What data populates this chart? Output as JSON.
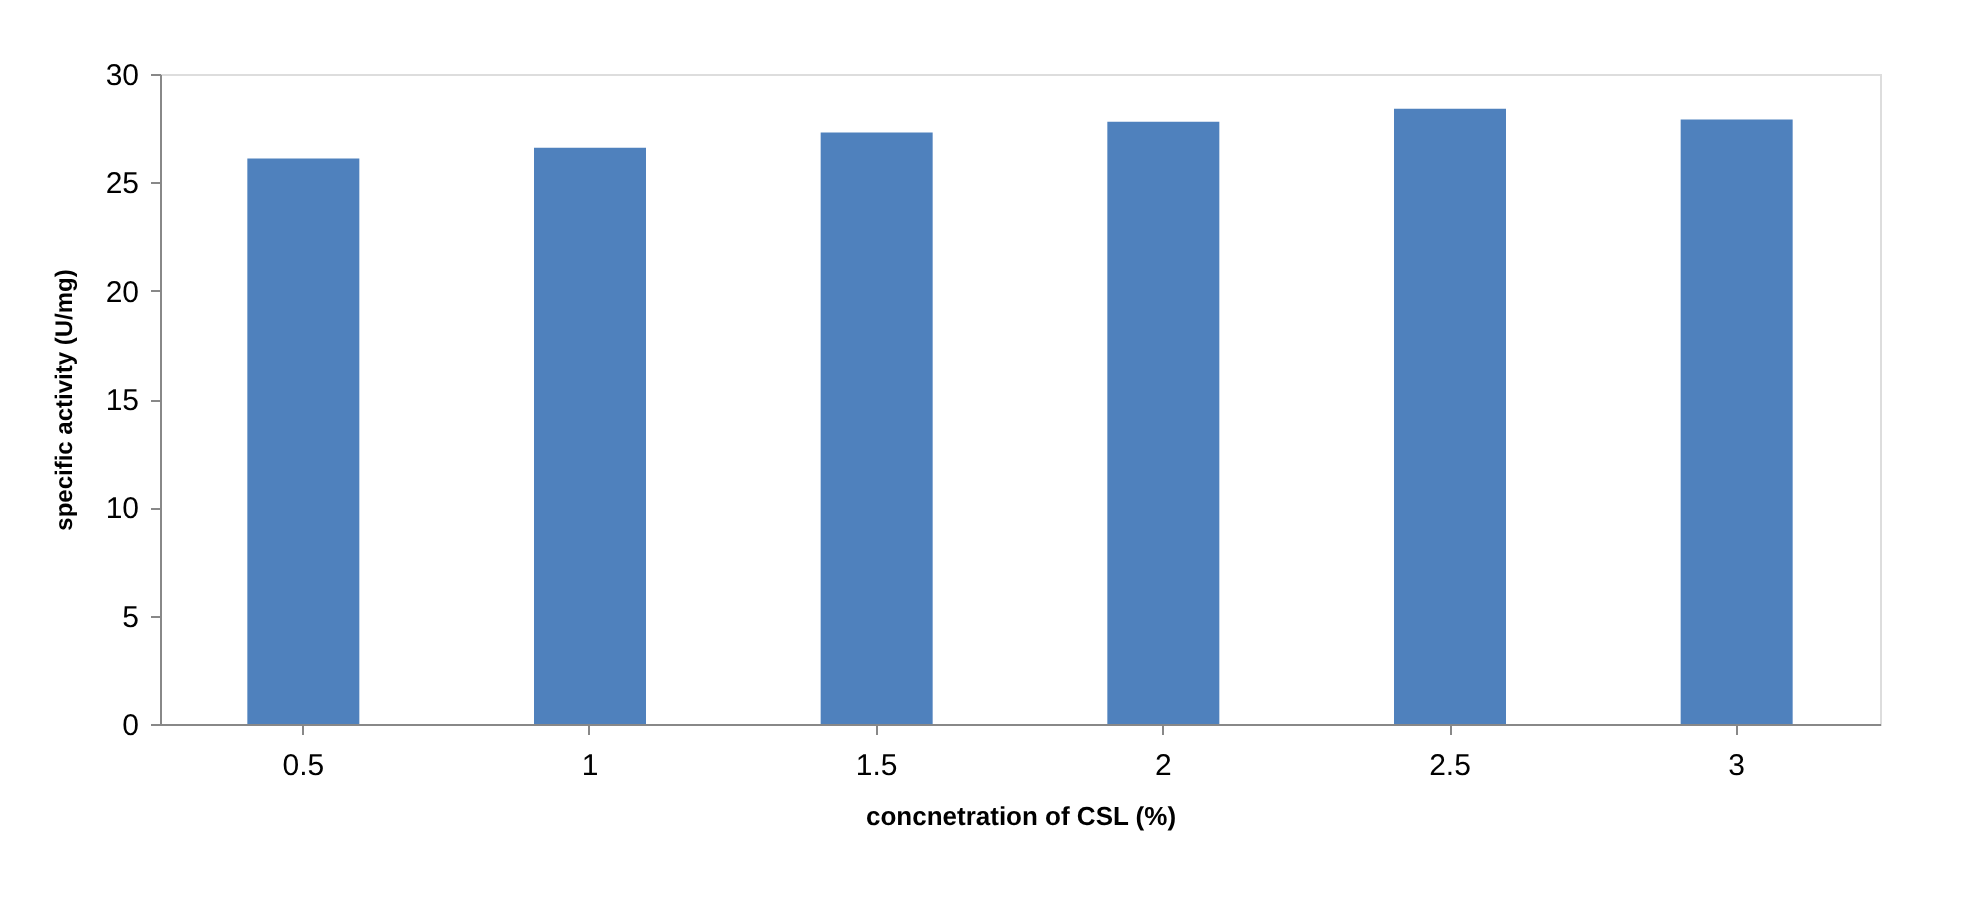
{
  "chart_data": {
    "type": "bar",
    "xlabel": "concnetration of CSL (%)",
    "ylabel": "specific activity (U/mg)",
    "categories": [
      "0.5",
      "1",
      "1.5",
      "2",
      "2.5",
      "3"
    ],
    "values": [
      26.1,
      26.6,
      27.3,
      27.8,
      28.4,
      27.9
    ],
    "color": "#4f81bd",
    "ylim": [
      0,
      30
    ],
    "yticks": [
      0,
      5,
      10,
      15,
      20,
      25,
      30
    ],
    "grid": false
  }
}
